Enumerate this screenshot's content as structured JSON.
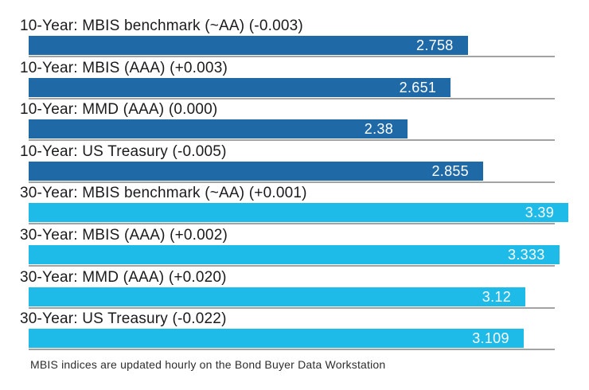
{
  "chart_data": {
    "type": "bar",
    "orientation": "horizontal",
    "legend": false,
    "x_axis_visible": false,
    "xlim": [
      0,
      3.52
    ],
    "grid": "row-separators",
    "colors": {
      "ten_year_bar": "#1f69a6",
      "thirty_year_bar": "#1ebae8",
      "separator": "#a3a3a3",
      "label_text": "#1b1b1b",
      "value_text": "#ffffff"
    },
    "rows": [
      {
        "label": "10-Year: MBIS benchmark (~AA) (-0.003)",
        "value": 2.758,
        "value_label": "2.758",
        "group": "10-year",
        "change": "-0.003"
      },
      {
        "label": "10-Year: MBIS (AAA) (+0.003)",
        "value": 2.651,
        "value_label": "2.651",
        "group": "10-year",
        "change": "+0.003"
      },
      {
        "label": "10-Year: MMD (AAA) (0.000)",
        "value": 2.38,
        "value_label": "2.38",
        "group": "10-year",
        "change": "0.000"
      },
      {
        "label": "10-Year: US Treasury (-0.005)",
        "value": 2.855,
        "value_label": "2.855",
        "group": "10-year",
        "change": "-0.005"
      },
      {
        "label": "30-Year: MBIS benchmark (~AA) (+0.001)",
        "value": 3.39,
        "value_label": "3.39",
        "group": "30-year",
        "change": "+0.001"
      },
      {
        "label": "30-Year: MBIS (AAA) (+0.002)",
        "value": 3.333,
        "value_label": "3.333",
        "group": "30-year",
        "change": "+0.002"
      },
      {
        "label": "30-Year: MMD (AAA) (+0.020)",
        "value": 3.12,
        "value_label": "3.12",
        "group": "30-year",
        "change": "+0.020"
      },
      {
        "label": "30-Year: US Treasury (-0.022)",
        "value": 3.109,
        "value_label": "3.109",
        "group": "30-year",
        "change": "-0.022"
      }
    ],
    "footnote": "MBIS indices are updated hourly on the Bond Buyer Data Workstation"
  }
}
